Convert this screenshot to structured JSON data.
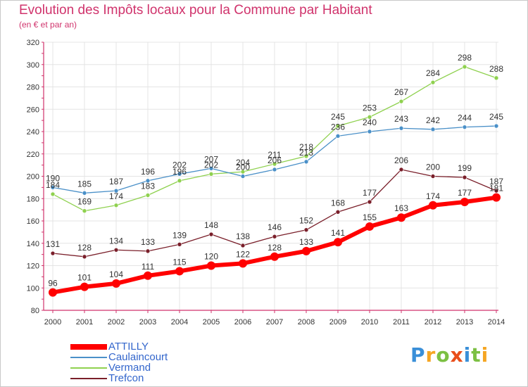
{
  "title": "Evolution des Impôts locaux pour la Commune par Habitant",
  "subtitle": "(en € et par an)",
  "logo": {
    "letters": [
      "P",
      "r",
      "o",
      "x",
      "i",
      "t",
      "i"
    ],
    "colors": [
      "#3a8fd8",
      "#f5a623",
      "#7cc043",
      "#e94e1b",
      "#3a8fd8",
      "#7cc043",
      "#f5a623"
    ]
  },
  "colors": {
    "axis": "#d0336c",
    "grid": "#e4e4e4",
    "tick_text": "#333333",
    "legend_text": "#3366cc"
  },
  "chart_data": {
    "type": "line",
    "title": "Evolution des Impôts locaux pour la Commune par Habitant",
    "subtitle": "(en € et par an)",
    "x": [
      2000,
      2001,
      2002,
      2003,
      2004,
      2005,
      2006,
      2007,
      2008,
      2009,
      2010,
      2011,
      2012,
      2013,
      2014
    ],
    "ylim": [
      80,
      320
    ],
    "yticks": [
      80,
      100,
      120,
      140,
      160,
      180,
      200,
      220,
      240,
      260,
      280,
      300,
      320
    ],
    "grid": true,
    "legend_position": "bottom-left",
    "series": [
      {
        "name": "Trefcon",
        "color": "#7a1f2a",
        "width": 1.3,
        "values": [
          131,
          128,
          134,
          133,
          139,
          148,
          138,
          146,
          152,
          168,
          177,
          206,
          200,
          199,
          187
        ]
      },
      {
        "name": "Vermand",
        "color": "#8fd14f",
        "width": 1.3,
        "values": [
          184,
          169,
          174,
          183,
          196,
          202,
          204,
          211,
          218,
          245,
          253,
          267,
          284,
          298,
          288
        ]
      },
      {
        "name": "Caulaincourt",
        "color": "#4a90c8",
        "width": 1.3,
        "values": [
          190,
          185,
          187,
          196,
          202,
          207,
          200,
          206,
          213,
          236,
          240,
          243,
          242,
          244,
          245
        ]
      },
      {
        "name": "ATTILLY",
        "color": "#ff0000",
        "width": 6,
        "values": [
          96,
          101,
          104,
          111,
          115,
          120,
          122,
          128,
          133,
          141,
          155,
          163,
          174,
          177,
          181
        ]
      }
    ],
    "legend_order": [
      "ATTILLY",
      "Caulaincourt",
      "Vermand",
      "Trefcon"
    ]
  }
}
